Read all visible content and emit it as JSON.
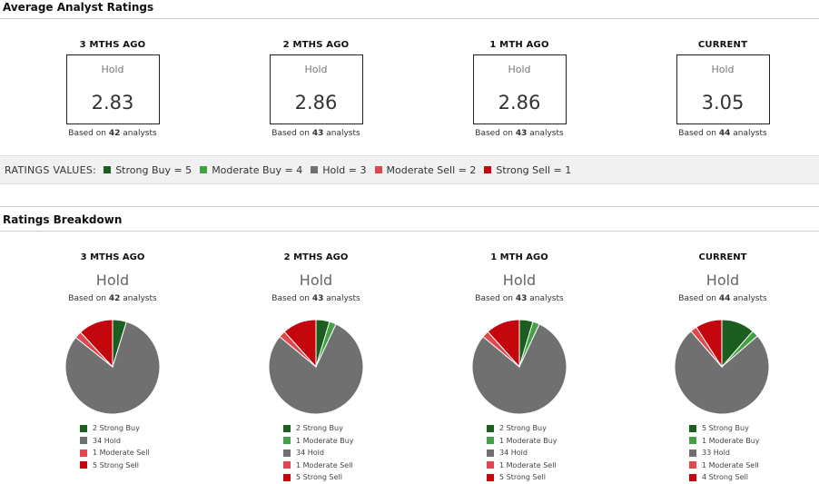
{
  "avg_title": "Average Analyst Ratings",
  "breakdown_title": "Ratings Breakdown",
  "based_prefix": "Based on",
  "based_suffix": "analysts",
  "periods": [
    {
      "label": "3 MTHS AGO",
      "rating": "Hold",
      "score": "2.83",
      "analysts": "42"
    },
    {
      "label": "2 MTHS AGO",
      "rating": "Hold",
      "score": "2.86",
      "analysts": "43"
    },
    {
      "label": "1 MTH AGO",
      "rating": "Hold",
      "score": "2.86",
      "analysts": "43"
    },
    {
      "label": "CURRENT",
      "rating": "Hold",
      "score": "3.05",
      "analysts": "44"
    }
  ],
  "ratings_values": {
    "title": "RATINGS VALUES:",
    "items": [
      {
        "label": "Strong Buy = 5",
        "color": "#1b5e20"
      },
      {
        "label": "Moderate Buy = 4",
        "color": "#43a047"
      },
      {
        "label": "Hold = 3",
        "color": "#707070"
      },
      {
        "label": "Moderate Sell = 2",
        "color": "#e0484e"
      },
      {
        "label": "Strong Sell = 1",
        "color": "#c4070d"
      }
    ]
  },
  "colors": {
    "Strong Buy": "#1b5e20",
    "Moderate Buy": "#43a047",
    "Hold": "#707070",
    "Moderate Sell": "#e0484e",
    "Strong Sell": "#c4070d"
  },
  "chart_data": [
    {
      "type": "pie",
      "title": "3 MTHS AGO",
      "slices": [
        {
          "name": "Strong Buy",
          "value": 2,
          "label": "2 Strong Buy"
        },
        {
          "name": "Hold",
          "value": 34,
          "label": "34 Hold"
        },
        {
          "name": "Moderate Sell",
          "value": 1,
          "label": "1 Moderate Sell"
        },
        {
          "name": "Strong Sell",
          "value": 5,
          "label": "5 Strong Sell"
        }
      ]
    },
    {
      "type": "pie",
      "title": "2 MTHS AGO",
      "slices": [
        {
          "name": "Strong Buy",
          "value": 2,
          "label": "2 Strong Buy"
        },
        {
          "name": "Moderate Buy",
          "value": 1,
          "label": "1 Moderate Buy"
        },
        {
          "name": "Hold",
          "value": 34,
          "label": "34 Hold"
        },
        {
          "name": "Moderate Sell",
          "value": 1,
          "label": "1 Moderate Sell"
        },
        {
          "name": "Strong Sell",
          "value": 5,
          "label": "5 Strong Sell"
        }
      ]
    },
    {
      "type": "pie",
      "title": "1 MTH AGO",
      "slices": [
        {
          "name": "Strong Buy",
          "value": 2,
          "label": "2 Strong Buy"
        },
        {
          "name": "Moderate Buy",
          "value": 1,
          "label": "1 Moderate Buy"
        },
        {
          "name": "Hold",
          "value": 34,
          "label": "34 Hold"
        },
        {
          "name": "Moderate Sell",
          "value": 1,
          "label": "1 Moderate Sell"
        },
        {
          "name": "Strong Sell",
          "value": 5,
          "label": "5 Strong Sell"
        }
      ]
    },
    {
      "type": "pie",
      "title": "CURRENT",
      "slices": [
        {
          "name": "Strong Buy",
          "value": 5,
          "label": "5 Strong Buy"
        },
        {
          "name": "Moderate Buy",
          "value": 1,
          "label": "1 Moderate Buy"
        },
        {
          "name": "Hold",
          "value": 33,
          "label": "33 Hold"
        },
        {
          "name": "Moderate Sell",
          "value": 1,
          "label": "1 Moderate Sell"
        },
        {
          "name": "Strong Sell",
          "value": 4,
          "label": "4 Strong Sell"
        }
      ]
    }
  ]
}
